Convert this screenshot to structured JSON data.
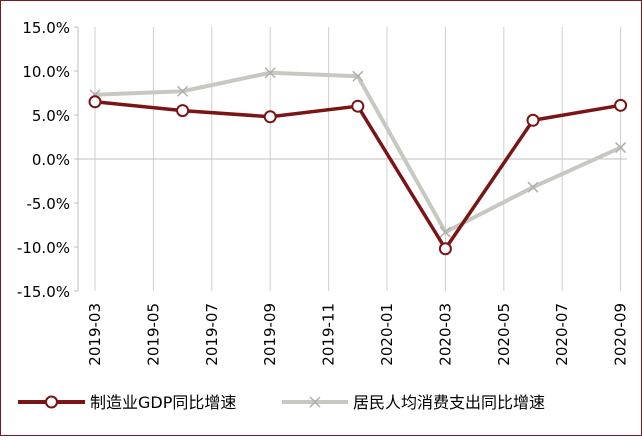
{
  "chart_data": {
    "type": "line",
    "x_tick_labels": [
      "2019-03",
      "2019-05",
      "2019-07",
      "2019-09",
      "2019-11",
      "2020-01",
      "2020-03",
      "2020-05",
      "2020-07",
      "2020-09"
    ],
    "ylim": [
      -15,
      15
    ],
    "y_ticks": [
      15,
      10,
      5,
      0,
      -5,
      -10,
      -15
    ],
    "y_tick_labels": [
      "15.0%",
      "10.0%",
      "5.0%",
      "0.0%",
      "-5.0%",
      "-10.0%",
      "-15.0%"
    ],
    "grid": "vertical",
    "legend_position": "bottom",
    "colors": {
      "frame": "#7a1a1a",
      "grid": "#cfcfcf",
      "axis": "#bfbfbf"
    },
    "series": [
      {
        "name": "制造业GDP同比增速",
        "color": "#7b1414",
        "marker": "circle",
        "points": [
          {
            "x": "2019-03",
            "y": 6.5
          },
          {
            "x": "2019-06",
            "y": 5.5
          },
          {
            "x": "2019-09",
            "y": 4.8
          },
          {
            "x": "2019-12",
            "y": 6.0
          },
          {
            "x": "2020-03",
            "y": -10.2
          },
          {
            "x": "2020-06",
            "y": 4.4
          },
          {
            "x": "2020-09",
            "y": 6.1
          }
        ]
      },
      {
        "name": "居民人均消费支出同比增速",
        "color": "#c8c8c2",
        "marker": "x",
        "points": [
          {
            "x": "2019-03",
            "y": 7.3
          },
          {
            "x": "2019-06",
            "y": 7.7
          },
          {
            "x": "2019-09",
            "y": 9.8
          },
          {
            "x": "2019-12",
            "y": 9.4
          },
          {
            "x": "2020-03",
            "y": -8.3
          },
          {
            "x": "2020-06",
            "y": -3.2
          },
          {
            "x": "2020-09",
            "y": 1.3
          }
        ]
      }
    ]
  }
}
